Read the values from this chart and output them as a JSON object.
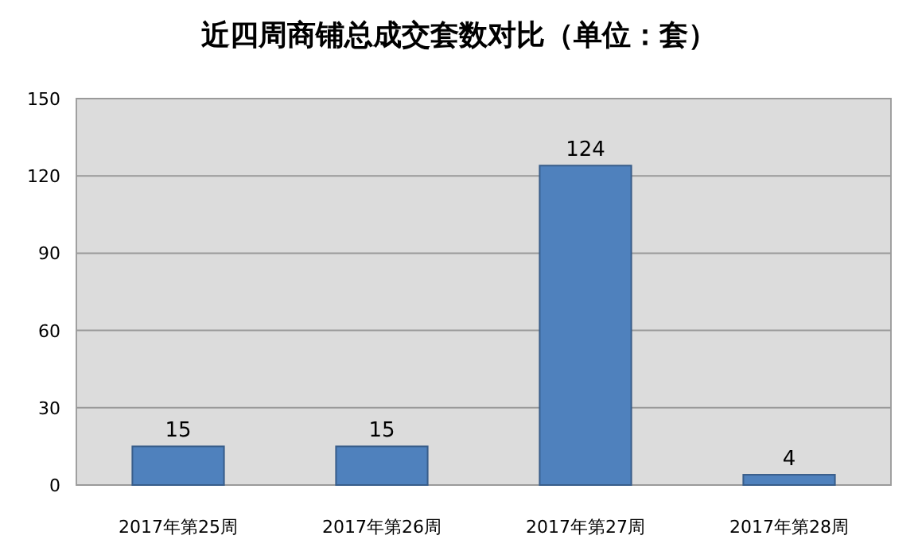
{
  "chart_data": {
    "type": "bar",
    "title": "近四周商铺总成交套数对比（单位：套）",
    "categories": [
      "2017年第25周",
      "2017年第26周",
      "2017年第27周",
      "2017年第28周"
    ],
    "values": [
      15,
      15,
      124,
      4
    ],
    "color": "#4f81bd",
    "ylim": [
      0,
      150
    ],
    "yticks": [
      0,
      30,
      60,
      90,
      120,
      150
    ],
    "grid": "y",
    "data_labels": true
  }
}
